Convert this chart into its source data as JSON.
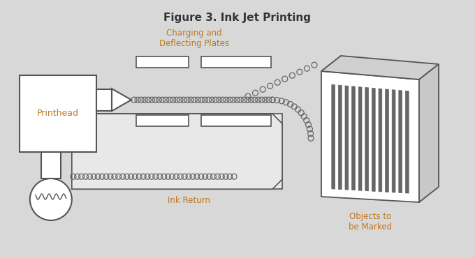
{
  "title": "Figure 3. Ink Jet Printing",
  "bg_color": "#d8d8d8",
  "box_color": "#ffffff",
  "line_color": "#555555",
  "dot_color": "#666666",
  "text_color": "#c07820",
  "label_printhead": "Printhead",
  "label_charging": "Charging and\nDeflecting Plates",
  "label_ink_return": "Ink Return",
  "label_objects": "Objects to\nbe Marked",
  "title_color": "#333333"
}
